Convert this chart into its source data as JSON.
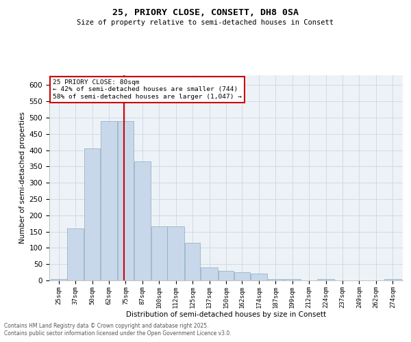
{
  "title1": "25, PRIORY CLOSE, CONSETT, DH8 0SA",
  "title2": "Size of property relative to semi-detached houses in Consett",
  "xlabel": "Distribution of semi-detached houses by size in Consett",
  "ylabel": "Number of semi-detached properties",
  "property_size_label": "25 PRIORY CLOSE: 80sqm",
  "pct_smaller": 42,
  "pct_larger": 58,
  "count_smaller": 744,
  "count_larger": 1047,
  "bar_categories": [
    "25sqm",
    "37sqm",
    "50sqm",
    "62sqm",
    "75sqm",
    "87sqm",
    "100sqm",
    "112sqm",
    "125sqm",
    "137sqm",
    "150sqm",
    "162sqm",
    "174sqm",
    "187sqm",
    "199sqm",
    "212sqm",
    "224sqm",
    "237sqm",
    "249sqm",
    "262sqm",
    "274sqm"
  ],
  "bar_values": [
    5,
    160,
    405,
    490,
    490,
    365,
    165,
    165,
    115,
    40,
    30,
    25,
    20,
    5,
    5,
    0,
    5,
    0,
    0,
    0,
    5
  ],
  "bar_left_edges": [
    25,
    37,
    50,
    62,
    75,
    87,
    100,
    112,
    125,
    137,
    150,
    162,
    174,
    187,
    199,
    212,
    224,
    237,
    249,
    262,
    274
  ],
  "bar_widths": [
    12,
    13,
    12,
    13,
    12,
    13,
    12,
    13,
    12,
    13,
    12,
    12,
    13,
    12,
    13,
    12,
    13,
    12,
    13,
    12,
    13
  ],
  "bar_color": "#c8d8ea",
  "bar_edge_color": "#8aaabe",
  "vline_color": "#cc0000",
  "vline_x": 80,
  "box_edge_color": "#cc0000",
  "ylim_min": 0,
  "ylim_max": 630,
  "yticks": [
    0,
    50,
    100,
    150,
    200,
    250,
    300,
    350,
    400,
    450,
    500,
    550,
    600
  ],
  "grid_color": "#d0dae4",
  "plot_bg_color": "#edf2f7",
  "footer1": "Contains HM Land Registry data © Crown copyright and database right 2025.",
  "footer2": "Contains public sector information licensed under the Open Government Licence v3.0."
}
